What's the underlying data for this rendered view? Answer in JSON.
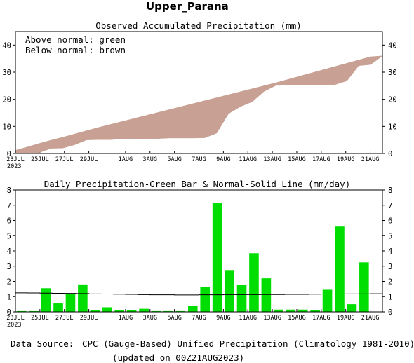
{
  "title": "Upper_Parana",
  "footer": {
    "source_label": "Data Source:",
    "source_text": "CPC (Gauge-Based) Unified Precipitation (Climatology 1981-2010)",
    "updated": "(updated on 00Z21AUG2023)"
  },
  "colors": {
    "above_normal": "#00dd00",
    "below_normal": "#c8a094",
    "daily_bar": "#00dd00",
    "normal_line": "#000000",
    "source_label": "#dd2222"
  },
  "chart_data": [
    {
      "type": "area",
      "title": "Observed Accumulated Precipitation (mm)",
      "legend": [
        "Above normal: green",
        "Below normal: brown"
      ],
      "legend_position": "top-left",
      "x_tick_labels": [
        "23JUL",
        "25JUL",
        "27JUL",
        "29JUL",
        "1AUG",
        "3AUG",
        "5AUG",
        "7AUG",
        "9AUG",
        "11AUG",
        "13AUG",
        "15AUG",
        "17AUG",
        "19AUG",
        "21AUG"
      ],
      "x_year_label": "2023",
      "ylim": [
        0,
        45
      ],
      "y_ticks": [
        0,
        10,
        20,
        30,
        40
      ],
      "series": [
        {
          "name": "Observed",
          "values": [
            0.1,
            0.2,
            0.3,
            1.9,
            2.0,
            3.2,
            5.0,
            5.1,
            5.1,
            5.4,
            5.5,
            5.5,
            5.5,
            5.7,
            5.7,
            5.7,
            5.8,
            7.5,
            14.7,
            17.3,
            19.1,
            22.9,
            25.1,
            25.2,
            25.2,
            25.3,
            25.3,
            25.4,
            26.8,
            32.4,
            32.8,
            36.0
          ]
        },
        {
          "name": "Normal",
          "values": [
            1.2,
            2.4,
            3.7,
            4.9,
            6.0,
            7.2,
            8.4,
            9.6,
            10.7,
            11.8,
            12.9,
            14.0,
            15.1,
            16.2,
            17.3,
            18.4,
            19.5,
            20.6,
            21.7,
            22.8,
            23.9,
            25.0,
            26.1,
            27.3,
            28.5,
            29.7,
            30.9,
            32.1,
            33.3,
            34.5,
            35.7,
            36.0
          ]
        }
      ]
    },
    {
      "type": "bar",
      "title": "Daily Precipitation-Green Bar & Normal-Solid Line (mm/day)",
      "x_tick_labels": [
        "23JUL",
        "25JUL",
        "27JUL",
        "29JUL",
        "1AUG",
        "3AUG",
        "5AUG",
        "7AUG",
        "9AUG",
        "11AUG",
        "13AUG",
        "15AUG",
        "17AUG",
        "19AUG",
        "21AUG"
      ],
      "x_year_label": "2023",
      "ylim": [
        0,
        8
      ],
      "y_ticks": [
        0,
        1,
        2,
        3,
        4,
        5,
        6,
        7,
        8
      ],
      "categories": [
        "23JUL",
        "24JUL",
        "25JUL",
        "26JUL",
        "27JUL",
        "28JUL",
        "29JUL",
        "30JUL",
        "31JUL",
        "1AUG",
        "2AUG",
        "3AUG",
        "4AUG",
        "5AUG",
        "6AUG",
        "7AUG",
        "8AUG",
        "9AUG",
        "10AUG",
        "11AUG",
        "12AUG",
        "13AUG",
        "14AUG",
        "15AUG",
        "16AUG",
        "17AUG",
        "18AUG",
        "19AUG",
        "20AUG",
        "21AUG"
      ],
      "series": [
        {
          "name": "Daily precipitation",
          "values": [
            0.05,
            0.05,
            1.55,
            0.55,
            1.2,
            1.8,
            0.1,
            0.3,
            0.1,
            0.1,
            0.2,
            0.05,
            0.05,
            0.05,
            0.4,
            1.65,
            7.15,
            2.7,
            1.75,
            3.85,
            2.2,
            0.15,
            0.15,
            0.15,
            0.1,
            1.45,
            5.6,
            0.5,
            3.25,
            0.0
          ]
        },
        {
          "name": "Normal",
          "values": [
            1.25,
            1.24,
            1.23,
            1.22,
            1.21,
            1.2,
            1.18,
            1.17,
            1.16,
            1.15,
            1.13,
            1.12,
            1.12,
            1.11,
            1.11,
            1.12,
            1.12,
            1.13,
            1.13,
            1.13,
            1.14,
            1.14,
            1.15,
            1.15,
            1.16,
            1.17,
            1.17,
            1.18,
            1.18,
            1.19
          ]
        }
      ]
    }
  ]
}
